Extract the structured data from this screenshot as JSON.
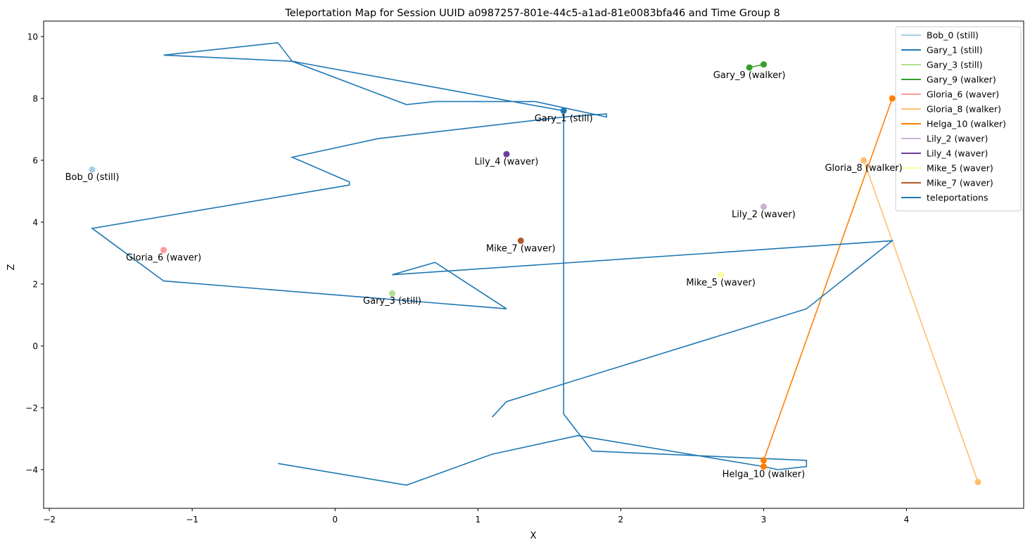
{
  "chart_data": {
    "type": "line",
    "title": "Teleportation Map for Session UUID a0987257-801e-44c5-a1ad-81e0083bfa46 and Time Group 8",
    "xlabel": "X",
    "ylabel": "Z",
    "xlim": [
      -2.04,
      4.82
    ],
    "ylim": [
      -5.25,
      10.5
    ],
    "xticks": [
      -2,
      -1,
      0,
      1,
      2,
      3,
      4
    ],
    "yticks": [
      -4,
      -2,
      0,
      2,
      4,
      6,
      8,
      10
    ],
    "grid": false,
    "legend_position": "top-right",
    "series": [
      {
        "name": "Bob_0 (still)",
        "color": "#a6cee3",
        "x": [
          -1.7
        ],
        "y": [
          5.7
        ],
        "label": "Bob_0 (still)"
      },
      {
        "name": "Gary_1 (still)",
        "color": "#1f78b4",
        "x": [
          1.6
        ],
        "y": [
          7.6
        ],
        "label": "Gary_1 (still)"
      },
      {
        "name": "Gary_3 (still)",
        "color": "#b2df8a",
        "x": [
          0.4
        ],
        "y": [
          1.7
        ],
        "label": "Gary_3 (still)"
      },
      {
        "name": "Gary_9 (walker)",
        "color": "#33a02c",
        "x": [
          2.9,
          3.0
        ],
        "y": [
          9.0,
          9.1
        ],
        "label": "Gary_9 (walker)"
      },
      {
        "name": "Gloria_6 (waver)",
        "color": "#fb9a99",
        "x": [
          -1.2
        ],
        "y": [
          3.1
        ],
        "label": "Gloria_6 (waver)"
      },
      {
        "name": "Gloria_8 (walker)",
        "color": "#fdbf6f",
        "x": [
          3.7,
          4.5
        ],
        "y": [
          6.0,
          -4.4
        ],
        "label": "Gloria_8 (walker)"
      },
      {
        "name": "Helga_10 (walker)",
        "color": "#ff7f00",
        "x": [
          3.9,
          3.0,
          3.0
        ],
        "y": [
          8.0,
          -3.7,
          -3.9
        ],
        "label": "Helga_10 (walker)"
      },
      {
        "name": "Lily_2 (waver)",
        "color": "#cab2d6",
        "x": [
          3.0
        ],
        "y": [
          4.5
        ],
        "label": "Lily_2 (waver)"
      },
      {
        "name": "Lily_4 (waver)",
        "color": "#6a3d9a",
        "x": [
          1.2
        ],
        "y": [
          6.2
        ],
        "label": "Lily_4 (waver)"
      },
      {
        "name": "Mike_5 (waver)",
        "color": "#ffff99",
        "x": [
          2.7
        ],
        "y": [
          2.3
        ],
        "label": "Mike_5 (waver)"
      },
      {
        "name": "Mike_7 (waver)",
        "color": "#b15928",
        "x": [
          1.3
        ],
        "y": [
          3.4
        ],
        "label": "Mike_7 (waver)"
      },
      {
        "name": "teleportations",
        "color": "#1f77b4",
        "x": [
          1.1,
          1.2,
          3.3,
          3.9,
          0.4,
          0.7,
          1.2,
          -1.2,
          -1.7,
          0.1,
          0.1,
          -0.3,
          0.3,
          1.6,
          1.9,
          1.9,
          1.6,
          1.4,
          0.7,
          0.5,
          -0.3,
          -1.2,
          -0.4,
          -0.3,
          1.6,
          1.6,
          1.6,
          1.8,
          3.3,
          3.3,
          3.1,
          3.0,
          1.7,
          1.1,
          0.5,
          -0.4
        ],
        "y": [
          -2.3,
          -1.8,
          1.2,
          3.4,
          2.3,
          2.7,
          1.2,
          2.1,
          3.8,
          5.2,
          5.3,
          6.1,
          6.7,
          7.4,
          7.5,
          7.4,
          7.7,
          7.9,
          7.9,
          7.8,
          9.2,
          9.4,
          9.8,
          9.2,
          7.6,
          7.5,
          -2.2,
          -3.4,
          -3.7,
          -3.9,
          -4.0,
          -3.9,
          -2.9,
          -3.5,
          -4.5,
          -3.8
        ]
      }
    ]
  }
}
